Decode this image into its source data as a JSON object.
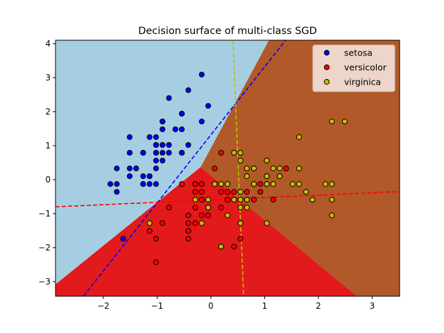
{
  "chart_data": {
    "type": "scatter",
    "title": "Decision surface of multi-class SGD",
    "xlabel": "",
    "ylabel": "",
    "xlim": [
      -2.89,
      3.51
    ],
    "ylim": [
      -3.43,
      4.1
    ],
    "x_ticks": [
      {
        "value": -2,
        "label": "−2"
      },
      {
        "value": -1,
        "label": "−1"
      },
      {
        "value": 0,
        "label": "0"
      },
      {
        "value": 1,
        "label": "1"
      },
      {
        "value": 2,
        "label": "2"
      },
      {
        "value": 3,
        "label": "3"
      }
    ],
    "y_ticks": [
      {
        "value": -3,
        "label": "−3"
      },
      {
        "value": -2,
        "label": "−2"
      },
      {
        "value": -1,
        "label": "−1"
      },
      {
        "value": 0,
        "label": "0"
      },
      {
        "value": 1,
        "label": "1"
      },
      {
        "value": 2,
        "label": "2"
      },
      {
        "value": 3,
        "label": "3"
      },
      {
        "value": 4,
        "label": "4"
      }
    ],
    "grid": false,
    "legend_position": "top-right",
    "decision_regions": [
      {
        "class": "setosa",
        "color": "#a6cee3",
        "polygon": [
          [
            -2.89,
            4.1
          ],
          [
            1.08,
            4.1
          ],
          [
            -0.19,
            0.37
          ],
          [
            -2.89,
            -3.08
          ]
        ]
      },
      {
        "class": "versicolor",
        "color": "#e31a1c",
        "polygon": [
          [
            -2.89,
            -3.08
          ],
          [
            -0.19,
            0.37
          ],
          [
            2.72,
            -3.43
          ],
          [
            -2.89,
            -3.43
          ]
        ]
      },
      {
        "class": "virginica",
        "color": "#b15928",
        "polygon": [
          [
            1.08,
            4.1
          ],
          [
            3.51,
            4.1
          ],
          [
            3.51,
            -3.43
          ],
          [
            2.72,
            -3.43
          ],
          [
            -0.19,
            0.37
          ]
        ]
      }
    ],
    "hyperplanes": [
      {
        "class": "setosa",
        "color": "#0000ff",
        "points": [
          [
            -2.37,
            -3.43
          ],
          [
            1.39,
            4.1
          ]
        ]
      },
      {
        "class": "versicolor",
        "color": "#ff0000",
        "points": [
          [
            -2.89,
            -0.8
          ],
          [
            3.51,
            -0.35
          ]
        ]
      },
      {
        "class": "virginica",
        "color": "#bfbf00",
        "points": [
          [
            0.41,
            4.1
          ],
          [
            0.61,
            -3.43
          ]
        ]
      }
    ],
    "series": [
      {
        "name": "setosa",
        "color": "#0000ff",
        "points": [
          [
            -0.9,
            1.02
          ],
          [
            -1.14,
            -0.13
          ],
          [
            -1.39,
            0.33
          ],
          [
            -1.51,
            0.1
          ],
          [
            -1.02,
            1.25
          ],
          [
            -0.54,
            1.94
          ],
          [
            -1.51,
            0.79
          ],
          [
            -1.02,
            0.79
          ],
          [
            -1.75,
            -0.36
          ],
          [
            -1.14,
            0.1
          ],
          [
            -0.54,
            1.48
          ],
          [
            -1.26,
            0.79
          ],
          [
            -1.26,
            -0.13
          ],
          [
            -1.87,
            -0.13
          ],
          [
            -0.05,
            2.17
          ],
          [
            -0.17,
            3.09
          ],
          [
            -0.54,
            1.94
          ],
          [
            -0.9,
            1.02
          ],
          [
            -0.17,
            1.71
          ],
          [
            -0.9,
            1.71
          ],
          [
            -0.54,
            0.79
          ],
          [
            -0.9,
            1.48
          ],
          [
            -1.51,
            1.25
          ],
          [
            -0.9,
            0.56
          ],
          [
            -1.26,
            0.79
          ],
          [
            -1.02,
            -0.13
          ],
          [
            -1.02,
            0.79
          ],
          [
            -0.78,
            1.02
          ],
          [
            -0.78,
            0.79
          ],
          [
            -1.39,
            0.33
          ],
          [
            -1.26,
            0.1
          ],
          [
            -0.54,
            0.79
          ],
          [
            -0.78,
            2.4
          ],
          [
            -0.42,
            2.63
          ],
          [
            -1.14,
            0.1
          ],
          [
            -1.02,
            0.33
          ],
          [
            -0.42,
            1.02
          ],
          [
            -1.14,
            1.25
          ],
          [
            -1.75,
            -0.13
          ],
          [
            -0.9,
            0.79
          ],
          [
            -1.02,
            1.02
          ],
          [
            -1.63,
            -1.74
          ],
          [
            -1.75,
            0.33
          ],
          [
            -1.02,
            1.02
          ],
          [
            -0.9,
            1.71
          ],
          [
            -1.26,
            -0.13
          ],
          [
            -0.9,
            1.71
          ],
          [
            -1.51,
            0.33
          ],
          [
            -0.66,
            1.48
          ],
          [
            -1.02,
            0.56
          ]
        ]
      },
      {
        "name": "versicolor",
        "color": "#ff0000",
        "points": [
          [
            1.4,
            0.33
          ],
          [
            0.67,
            0.33
          ],
          [
            1.28,
            0.1
          ],
          [
            -0.42,
            -1.74
          ],
          [
            0.8,
            -0.59
          ],
          [
            -0.17,
            -0.59
          ],
          [
            0.55,
            0.56
          ],
          [
            -1.14,
            -1.51
          ],
          [
            0.92,
            -0.36
          ],
          [
            -0.78,
            -0.82
          ],
          [
            -1.02,
            -2.43
          ],
          [
            0.07,
            -0.13
          ],
          [
            0.19,
            -1.97
          ],
          [
            0.31,
            -0.36
          ],
          [
            -0.29,
            -0.36
          ],
          [
            1.04,
            0.1
          ],
          [
            -0.29,
            -0.13
          ],
          [
            -0.05,
            -0.82
          ],
          [
            0.43,
            -1.97
          ],
          [
            -0.29,
            -1.28
          ],
          [
            0.07,
            0.33
          ],
          [
            0.31,
            -0.59
          ],
          [
            0.55,
            -1.28
          ],
          [
            0.31,
            -0.59
          ],
          [
            0.67,
            -0.36
          ],
          [
            0.92,
            -0.13
          ],
          [
            1.16,
            -0.59
          ],
          [
            1.04,
            -0.13
          ],
          [
            0.19,
            -0.36
          ],
          [
            -0.17,
            -1.05
          ],
          [
            -0.42,
            -1.51
          ],
          [
            -0.42,
            -1.51
          ],
          [
            -0.05,
            -0.82
          ],
          [
            0.19,
            -0.82
          ],
          [
            -0.54,
            -0.13
          ],
          [
            0.19,
            0.79
          ],
          [
            1.04,
            0.1
          ],
          [
            0.55,
            -1.74
          ],
          [
            -0.29,
            -0.13
          ],
          [
            -0.42,
            -1.28
          ],
          [
            -0.42,
            -1.05
          ],
          [
            0.31,
            -0.13
          ],
          [
            -0.05,
            -1.05
          ],
          [
            -1.02,
            -1.74
          ],
          [
            -0.29,
            -0.82
          ],
          [
            -0.17,
            -0.13
          ],
          [
            -0.17,
            -0.36
          ],
          [
            0.43,
            -0.36
          ],
          [
            -0.9,
            -1.28
          ],
          [
            -0.17,
            -0.59
          ]
        ]
      },
      {
        "name": "virginica",
        "color": "#bfbf00",
        "points": [
          [
            0.55,
            0.56
          ],
          [
            -0.05,
            -0.82
          ],
          [
            1.52,
            -0.13
          ],
          [
            0.55,
            -0.36
          ],
          [
            0.8,
            -0.13
          ],
          [
            2.13,
            -0.13
          ],
          [
            -1.14,
            -1.28
          ],
          [
            1.77,
            -0.36
          ],
          [
            1.04,
            -1.28
          ],
          [
            1.64,
            1.25
          ],
          [
            0.8,
            0.33
          ],
          [
            0.67,
            -0.82
          ],
          [
            1.16,
            -0.13
          ],
          [
            -0.17,
            -1.28
          ],
          [
            -0.05,
            -0.59
          ],
          [
            0.67,
            0.33
          ],
          [
            0.8,
            -0.13
          ],
          [
            2.25,
            1.71
          ],
          [
            2.25,
            -1.05
          ],
          [
            0.19,
            -1.97
          ],
          [
            1.28,
            0.33
          ],
          [
            -0.29,
            -0.59
          ],
          [
            2.25,
            -0.59
          ],
          [
            0.55,
            -0.82
          ],
          [
            1.04,
            0.56
          ],
          [
            1.64,
            0.33
          ],
          [
            0.43,
            -0.59
          ],
          [
            0.31,
            -0.13
          ],
          [
            0.67,
            -0.59
          ],
          [
            1.64,
            -0.13
          ],
          [
            1.89,
            -0.59
          ],
          [
            2.49,
            1.71
          ],
          [
            0.67,
            -0.59
          ],
          [
            0.55,
            -0.59
          ],
          [
            0.31,
            -1.05
          ],
          [
            2.25,
            -0.13
          ],
          [
            0.55,
            0.79
          ],
          [
            0.67,
            0.1
          ],
          [
            0.19,
            -0.13
          ],
          [
            1.28,
            0.1
          ],
          [
            1.04,
            0.1
          ],
          [
            1.28,
            0.1
          ],
          [
            -0.05,
            -0.82
          ],
          [
            1.16,
            0.33
          ],
          [
            1.04,
            0.56
          ],
          [
            1.04,
            -0.13
          ],
          [
            0.55,
            -1.28
          ],
          [
            0.8,
            -0.13
          ],
          [
            0.43,
            0.79
          ],
          [
            0.07,
            -0.13
          ]
        ]
      }
    ]
  }
}
